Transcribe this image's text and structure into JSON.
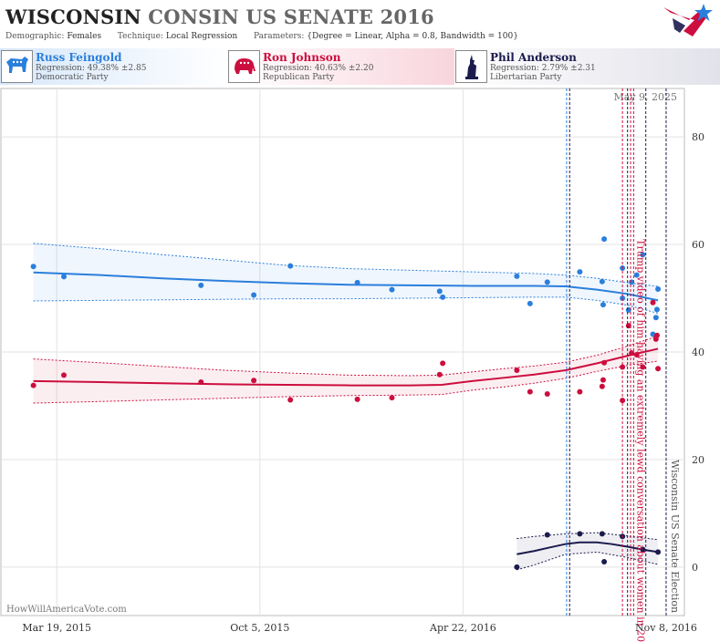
{
  "header": {
    "title_highlight": "WISCONSIN",
    "title_rest": "CONSIN US SENATE 2016",
    "demographic_label": "Demographic:",
    "demographic_value": "Females",
    "technique_label": "Technique:",
    "technique_value": "Local Regression",
    "parameters_label": "Parameters:",
    "parameters_value": "{Degree = Linear, Alpha = 0.8, Bandwidth = 100}"
  },
  "candidates": [
    {
      "name": "Russ Feingold",
      "regression": "Regression: 49.38% ±2.85",
      "party": "Democratic Party",
      "color": "#2a7fdc",
      "icon": "donkey-icon"
    },
    {
      "name": "Ron Johnson",
      "regression": "Regression: 40.63% ±2.20",
      "party": "Republican Party",
      "color": "#cc0e3e",
      "icon": "elephant-icon"
    },
    {
      "name": "Phil Anderson",
      "regression": "Regression: 2.79% ±2.31",
      "party": "Libertarian Party",
      "color": "#1b1b4e",
      "icon": "liberty-icon"
    }
  ],
  "chart_data": {
    "type": "scatter",
    "date_label": "May 9, 2025",
    "watermark": "HowWillAmericaVote.com",
    "x_ticks": [
      "Mar 19, 2015",
      "Oct 5, 2015",
      "Apr 22, 2016",
      "Nov 8, 2016"
    ],
    "y_ticks": [
      0,
      20,
      40,
      60,
      80
    ],
    "ylim": [
      -9,
      89
    ],
    "xlim": [
      "2015-01-23",
      "2016-11-26"
    ],
    "grid": true,
    "annotations": [
      {
        "text": "Trump video of him having an extremely lewd conversation about women in 2005",
        "date": "2016-10-07",
        "color": "#cc0e3e"
      },
      {
        "text": "Wisconsin US Senate Election",
        "date": "2016-11-08",
        "color": "#555555"
      }
    ],
    "event_lines": [
      {
        "date": "2016-08-02",
        "color": "#2a7fdc"
      },
      {
        "date": "2016-08-05",
        "color": "#1b1b4e"
      },
      {
        "date": "2016-09-26",
        "color": "#cc0e3e"
      },
      {
        "date": "2016-10-01",
        "color": "#1b1b4e"
      },
      {
        "date": "2016-10-04",
        "color": "#cc0e3e"
      },
      {
        "date": "2016-10-07",
        "color": "#cc0e3e"
      },
      {
        "date": "2016-10-19",
        "color": "#1b1b4e"
      },
      {
        "date": "2016-11-08",
        "color": "#1b1b4e"
      }
    ],
    "series": [
      {
        "name": "Russ Feingold",
        "color": "#2a7fdc",
        "points": [
          [
            "2015-02-24",
            55.9
          ],
          [
            "2015-03-26",
            54
          ],
          [
            "2015-08-08",
            52.4
          ],
          [
            "2015-09-29",
            50.6
          ],
          [
            "2015-11-04",
            56
          ],
          [
            "2016-01-09",
            52.9
          ],
          [
            "2016-02-12",
            51.6
          ],
          [
            "2016-03-30",
            51.3
          ],
          [
            "2016-04-02",
            50.2
          ],
          [
            "2016-06-14",
            54.1
          ],
          [
            "2016-06-27",
            49
          ],
          [
            "2016-07-14",
            53
          ],
          [
            "2016-08-15",
            54.9
          ],
          [
            "2016-09-06",
            53.1
          ],
          [
            "2016-09-07",
            48.8
          ],
          [
            "2016-09-08",
            61
          ],
          [
            "2016-09-26",
            55.6
          ],
          [
            "2016-09-26",
            50
          ],
          [
            "2016-10-02",
            47.8
          ],
          [
            "2016-10-05",
            53
          ],
          [
            "2016-10-10",
            54.3
          ],
          [
            "2016-10-16",
            58.1
          ],
          [
            "2016-10-26",
            43.3
          ],
          [
            "2016-10-29",
            46.4
          ],
          [
            "2016-10-30",
            47.9
          ],
          [
            "2016-10-31",
            51.7
          ]
        ],
        "trend": [
          [
            "2015-02-24",
            54.8
          ],
          [
            "2015-05-01",
            54.3
          ],
          [
            "2015-07-01",
            53.7
          ],
          [
            "2015-09-01",
            53.2
          ],
          [
            "2015-11-01",
            52.8
          ],
          [
            "2016-01-01",
            52.5
          ],
          [
            "2016-03-01",
            52.4
          ],
          [
            "2016-05-01",
            52.3
          ],
          [
            "2016-07-01",
            52.3
          ],
          [
            "2016-08-01",
            52.2
          ],
          [
            "2016-09-01",
            51.6
          ],
          [
            "2016-10-01",
            50.8
          ],
          [
            "2016-10-31",
            49.6
          ]
        ],
        "band_upper": [
          [
            "2015-02-24",
            60.2
          ],
          [
            "2015-05-01",
            59.2
          ],
          [
            "2015-07-01",
            58.1
          ],
          [
            "2015-09-01",
            57.1
          ],
          [
            "2015-11-01",
            56.1
          ],
          [
            "2016-01-01",
            55.5
          ],
          [
            "2016-03-01",
            55.2
          ],
          [
            "2016-05-01",
            54.9
          ],
          [
            "2016-07-01",
            54.6
          ],
          [
            "2016-08-01",
            54.3
          ],
          [
            "2016-09-01",
            53.7
          ],
          [
            "2016-10-01",
            52.9
          ],
          [
            "2016-10-31",
            52.2
          ]
        ],
        "band_lower": [
          [
            "2015-02-24",
            49.5
          ],
          [
            "2015-05-01",
            49.6
          ],
          [
            "2015-07-01",
            49.7
          ],
          [
            "2015-09-01",
            49.8
          ],
          [
            "2015-11-01",
            49.9
          ],
          [
            "2016-01-01",
            49.9
          ],
          [
            "2016-03-01",
            50.0
          ],
          [
            "2016-05-01",
            50.1
          ],
          [
            "2016-07-01",
            50.2
          ],
          [
            "2016-08-01",
            50.2
          ],
          [
            "2016-09-01",
            49.6
          ],
          [
            "2016-10-01",
            48.7
          ],
          [
            "2016-10-31",
            47.2
          ]
        ]
      },
      {
        "name": "Ron Johnson",
        "color": "#cc0e3e",
        "points": [
          [
            "2015-02-24",
            33.8
          ],
          [
            "2015-03-26",
            35.7
          ],
          [
            "2015-08-08",
            34.4
          ],
          [
            "2015-09-29",
            34.7
          ],
          [
            "2015-11-04",
            31.1
          ],
          [
            "2016-01-09",
            31.2
          ],
          [
            "2016-02-12",
            31.5
          ],
          [
            "2016-03-30",
            35.8
          ],
          [
            "2016-04-02",
            37.9
          ],
          [
            "2016-06-14",
            36.6
          ],
          [
            "2016-06-27",
            32.6
          ],
          [
            "2016-07-14",
            32.2
          ],
          [
            "2016-08-15",
            32.6
          ],
          [
            "2016-09-06",
            33.6
          ],
          [
            "2016-09-07",
            34.8
          ],
          [
            "2016-09-08",
            38
          ],
          [
            "2016-09-26",
            31
          ],
          [
            "2016-09-26",
            37.2
          ],
          [
            "2016-10-02",
            44.9
          ],
          [
            "2016-10-05",
            39.8
          ],
          [
            "2016-10-10",
            39.5
          ],
          [
            "2016-10-16",
            37.2
          ],
          [
            "2016-10-26",
            49.2
          ],
          [
            "2016-10-29",
            42.4
          ],
          [
            "2016-10-30",
            43.1
          ],
          [
            "2016-10-31",
            36.9
          ]
        ],
        "trend": [
          [
            "2015-02-24",
            34.6
          ],
          [
            "2015-05-01",
            34.4
          ],
          [
            "2015-07-01",
            34.2
          ],
          [
            "2015-09-01",
            34.0
          ],
          [
            "2015-11-01",
            33.9
          ],
          [
            "2016-01-01",
            33.8
          ],
          [
            "2016-03-01",
            33.8
          ],
          [
            "2016-04-01",
            33.9
          ],
          [
            "2016-05-01",
            34.6
          ],
          [
            "2016-06-01",
            35.2
          ],
          [
            "2016-07-01",
            35.8
          ],
          [
            "2016-08-01",
            36.6
          ],
          [
            "2016-09-01",
            37.9
          ],
          [
            "2016-10-01",
            39.3
          ],
          [
            "2016-10-31",
            40.6
          ]
        ],
        "band_upper": [
          [
            "2015-02-24",
            38.7
          ],
          [
            "2015-05-01",
            38.0
          ],
          [
            "2015-07-01",
            37.3
          ],
          [
            "2015-09-01",
            36.6
          ],
          [
            "2015-11-01",
            36.1
          ],
          [
            "2016-01-01",
            35.7
          ],
          [
            "2016-03-01",
            35.6
          ],
          [
            "2016-04-01",
            35.7
          ],
          [
            "2016-05-01",
            36.3
          ],
          [
            "2016-06-01",
            36.9
          ],
          [
            "2016-07-01",
            37.4
          ],
          [
            "2016-08-01",
            38.1
          ],
          [
            "2016-09-01",
            39.4
          ],
          [
            "2016-10-01",
            41.1
          ],
          [
            "2016-10-31",
            43.0
          ]
        ],
        "band_lower": [
          [
            "2015-02-24",
            30.5
          ],
          [
            "2015-05-01",
            30.8
          ],
          [
            "2015-07-01",
            31.1
          ],
          [
            "2015-09-01",
            31.4
          ],
          [
            "2015-11-01",
            31.7
          ],
          [
            "2016-01-01",
            31.9
          ],
          [
            "2016-03-01",
            32.0
          ],
          [
            "2016-04-01",
            32.1
          ],
          [
            "2016-05-01",
            32.9
          ],
          [
            "2016-06-01",
            33.5
          ],
          [
            "2016-07-01",
            34.2
          ],
          [
            "2016-08-01",
            35.1
          ],
          [
            "2016-09-01",
            36.4
          ],
          [
            "2016-10-01",
            37.5
          ],
          [
            "2016-10-31",
            38.3
          ]
        ]
      },
      {
        "name": "Phil Anderson",
        "color": "#1b1b4e",
        "points": [
          [
            "2016-06-14",
            0
          ],
          [
            "2016-07-14",
            6
          ],
          [
            "2016-08-15",
            6.2
          ],
          [
            "2016-09-06",
            6.2
          ],
          [
            "2016-09-08",
            1
          ],
          [
            "2016-09-26",
            5.7
          ],
          [
            "2016-10-16",
            3.3
          ],
          [
            "2016-10-31",
            2.8
          ]
        ],
        "trend": [
          [
            "2016-06-14",
            2.4
          ],
          [
            "2016-07-01",
            3.0
          ],
          [
            "2016-07-15",
            3.6
          ],
          [
            "2016-08-01",
            4.3
          ],
          [
            "2016-08-15",
            4.6
          ],
          [
            "2016-09-01",
            4.6
          ],
          [
            "2016-09-15",
            4.3
          ],
          [
            "2016-10-01",
            3.8
          ],
          [
            "2016-10-15",
            3.3
          ],
          [
            "2016-10-31",
            2.8
          ]
        ],
        "band_upper": [
          [
            "2016-06-14",
            5.3
          ],
          [
            "2016-07-01",
            5.7
          ],
          [
            "2016-08-01",
            6.2
          ],
          [
            "2016-09-01",
            6.4
          ],
          [
            "2016-10-01",
            5.8
          ],
          [
            "2016-10-31",
            5.1
          ]
        ],
        "band_lower": [
          [
            "2016-06-14",
            -0.5
          ],
          [
            "2016-07-01",
            0.4
          ],
          [
            "2016-08-01",
            2.4
          ],
          [
            "2016-09-01",
            2.8
          ],
          [
            "2016-10-01",
            1.8
          ],
          [
            "2016-10-31",
            0.5
          ]
        ]
      }
    ]
  }
}
